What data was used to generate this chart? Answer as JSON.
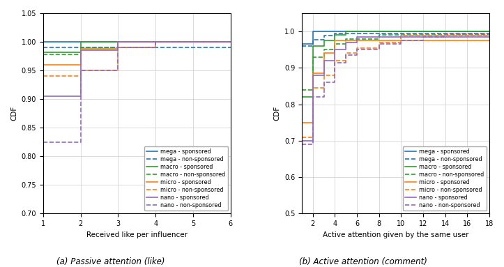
{
  "plot_a": {
    "xlabel": "Received like per influencer",
    "ylabel": "CDF",
    "xlim": [
      1,
      6
    ],
    "ylim": [
      0.7,
      1.05
    ],
    "yticks": [
      0.7,
      0.75,
      0.8,
      0.85,
      0.9,
      0.95,
      1.0,
      1.05
    ],
    "xticks": [
      1,
      2,
      3,
      4,
      5,
      6
    ],
    "series": [
      {
        "label": "mega - sponsored",
        "color": "#1f77b4",
        "ls": "-",
        "x": [
          1,
          2,
          2,
          6
        ],
        "y": [
          1.0,
          1.0,
          1.0,
          1.0
        ]
      },
      {
        "label": "mega - non-sponsored",
        "color": "#1f77b4",
        "ls": "--",
        "x": [
          1,
          2,
          2,
          6
        ],
        "y": [
          0.99,
          0.99,
          0.99,
          0.99
        ]
      },
      {
        "label": "macro - sponsored",
        "color": "#2ca02c",
        "ls": "-",
        "x": [
          1,
          2,
          2,
          3,
          3,
          6
        ],
        "y": [
          0.982,
          0.982,
          1.0,
          1.0,
          1.0,
          1.0
        ]
      },
      {
        "label": "macro - non-sponsored",
        "color": "#2ca02c",
        "ls": "--",
        "x": [
          1,
          2,
          2,
          3,
          3,
          4,
          4,
          6
        ],
        "y": [
          0.978,
          0.978,
          0.99,
          0.99,
          1.0,
          1.0,
          1.0,
          1.0
        ]
      },
      {
        "label": "micro - sponsored",
        "color": "#ff7f0e",
        "ls": "-",
        "x": [
          1,
          2,
          2,
          3,
          3,
          6
        ],
        "y": [
          0.96,
          0.96,
          0.988,
          0.988,
          1.0,
          1.0
        ]
      },
      {
        "label": "micro - non-sponsored",
        "color": "#ff7f0e",
        "ls": "--",
        "x": [
          1,
          2,
          2,
          3,
          3,
          4,
          4,
          6
        ],
        "y": [
          0.94,
          0.94,
          0.95,
          0.95,
          0.99,
          0.99,
          1.0,
          1.0
        ]
      },
      {
        "label": "nano - sponsored",
        "color": "#9467bd",
        "ls": "-",
        "x": [
          1,
          2,
          2,
          3,
          3,
          6
        ],
        "y": [
          0.905,
          0.905,
          0.985,
          0.985,
          1.0,
          1.0
        ]
      },
      {
        "label": "nano - non-sponsored",
        "color": "#9467bd",
        "ls": "--",
        "x": [
          1,
          2,
          2,
          3,
          3,
          4,
          4,
          6
        ],
        "y": [
          0.825,
          0.825,
          0.95,
          0.95,
          0.99,
          0.99,
          1.0,
          1.0
        ]
      }
    ]
  },
  "plot_b": {
    "xlabel": "Active attention given by the same user",
    "ylabel": "CDF",
    "xlim": [
      1,
      18
    ],
    "ylim": [
      0.5,
      1.05
    ],
    "yticks": [
      0.5,
      0.6,
      0.7,
      0.8,
      0.9,
      1.0
    ],
    "xticks": [
      2,
      4,
      6,
      8,
      10,
      12,
      14,
      16,
      18
    ],
    "series": [
      {
        "label": "mega - sponsored",
        "color": "#1f77b4",
        "ls": "-",
        "x": [
          1,
          2,
          2,
          3,
          3,
          18
        ],
        "y": [
          0.965,
          0.965,
          1.0,
          1.0,
          1.0,
          1.0
        ]
      },
      {
        "label": "mega - non-sponsored",
        "color": "#1f77b4",
        "ls": "--",
        "x": [
          1,
          2,
          2,
          3,
          3,
          4,
          4,
          18
        ],
        "y": [
          0.96,
          0.96,
          0.978,
          0.978,
          0.988,
          0.988,
          0.995,
          0.995
        ]
      },
      {
        "label": "macro - sponsored",
        "color": "#2ca02c",
        "ls": "-",
        "x": [
          1,
          2,
          2,
          3,
          3,
          4,
          4,
          5,
          5,
          18
        ],
        "y": [
          0.82,
          0.82,
          0.96,
          0.96,
          0.975,
          0.975,
          0.99,
          0.99,
          1.0,
          1.0
        ]
      },
      {
        "label": "macro - non-sponsored",
        "color": "#2ca02c",
        "ls": "--",
        "x": [
          1,
          2,
          2,
          3,
          3,
          4,
          4,
          5,
          5,
          8,
          8,
          18
        ],
        "y": [
          0.84,
          0.84,
          0.93,
          0.93,
          0.95,
          0.95,
          0.965,
          0.965,
          0.98,
          0.98,
          0.99,
          0.99
        ]
      },
      {
        "label": "micro - sponsored",
        "color": "#ff7f0e",
        "ls": "-",
        "x": [
          1,
          2,
          2,
          3,
          3,
          4,
          4,
          18
        ],
        "y": [
          0.75,
          0.75,
          0.885,
          0.885,
          0.94,
          0.94,
          0.975,
          0.975
        ]
      },
      {
        "label": "micro - non-sponsored",
        "color": "#ff7f0e",
        "ls": "--",
        "x": [
          1,
          2,
          2,
          3,
          3,
          4,
          4,
          5,
          5,
          6,
          6,
          8,
          8,
          10,
          10,
          18
        ],
        "y": [
          0.71,
          0.71,
          0.845,
          0.845,
          0.88,
          0.88,
          0.92,
          0.92,
          0.94,
          0.94,
          0.955,
          0.955,
          0.97,
          0.97,
          0.988,
          0.988
        ]
      },
      {
        "label": "nano - sponsored",
        "color": "#9467bd",
        "ls": "-",
        "x": [
          1,
          2,
          2,
          3,
          3,
          4,
          4,
          5,
          5,
          6,
          6,
          18
        ],
        "y": [
          0.7,
          0.7,
          0.88,
          0.88,
          0.92,
          0.92,
          0.95,
          0.95,
          0.97,
          0.97,
          0.985,
          0.985
        ]
      },
      {
        "label": "nano - non-sponsored",
        "color": "#9467bd",
        "ls": "--",
        "x": [
          1,
          2,
          2,
          3,
          3,
          4,
          4,
          5,
          5,
          6,
          6,
          8,
          8,
          10,
          10,
          12,
          12,
          14,
          14,
          18
        ],
        "y": [
          0.69,
          0.69,
          0.82,
          0.82,
          0.86,
          0.86,
          0.915,
          0.915,
          0.935,
          0.935,
          0.95,
          0.95,
          0.965,
          0.965,
          0.975,
          0.975,
          0.985,
          0.985,
          0.992,
          0.992
        ]
      }
    ]
  },
  "legend_entries": [
    {
      "label": "mega - sponsored",
      "color": "#1f77b4",
      "ls": "-"
    },
    {
      "label": "mega - non-sponsored",
      "color": "#1f77b4",
      "ls": "--"
    },
    {
      "label": "macro - sponsored",
      "color": "#2ca02c",
      "ls": "-"
    },
    {
      "label": "macro - non-sponsored",
      "color": "#2ca02c",
      "ls": "--"
    },
    {
      "label": "micro - sponsored",
      "color": "#ff7f0e",
      "ls": "-"
    },
    {
      "label": "micro - non-sponsored",
      "color": "#ff7f0e",
      "ls": "--"
    },
    {
      "label": "nano - sponsored",
      "color": "#9467bd",
      "ls": "-"
    },
    {
      "label": "nano - non-sponsored",
      "color": "#9467bd",
      "ls": "--"
    }
  ],
  "caption_a": "(a) Passive attention (like)",
  "caption_b": "(b) Active attention (comment)"
}
